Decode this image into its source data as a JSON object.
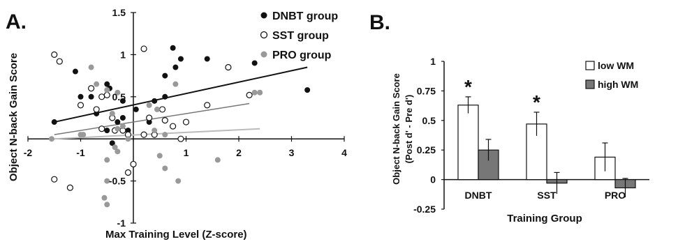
{
  "chart_data": [
    {
      "panel_label": "A.",
      "type": "scatter",
      "xlabel": "Max Training Level (Z-score)",
      "ylabel": "Object N-back Gain Score",
      "xlim": [
        -2,
        4
      ],
      "ylim": [
        -1,
        1.5
      ],
      "x_ticks": [
        "-2",
        "-1",
        "0",
        "1",
        "2",
        "3",
        "4"
      ],
      "y_ticks": [
        "1.5",
        "1",
        "0.5",
        "-0.5",
        "-1"
      ],
      "legend_position": "top-right",
      "series": [
        {
          "name": "DNBT group",
          "marker": "filled-black",
          "color": "#111111",
          "points": [
            [
              -1.5,
              0.2
            ],
            [
              -1.1,
              0.8
            ],
            [
              -1.0,
              0.5
            ],
            [
              -0.8,
              0.5
            ],
            [
              -0.7,
              0.3
            ],
            [
              -0.5,
              0.65
            ],
            [
              -0.5,
              0.1
            ],
            [
              -0.45,
              0.6
            ],
            [
              -0.4,
              -0.05
            ],
            [
              -0.3,
              0.2
            ],
            [
              -0.2,
              0.25
            ],
            [
              -0.1,
              0.1
            ],
            [
              -0.2,
              0.45
            ],
            [
              0.05,
              0.35
            ],
            [
              0.3,
              0.2
            ],
            [
              0.4,
              0.45
            ],
            [
              0.6,
              0.75
            ],
            [
              0.6,
              0.5
            ],
            [
              0.75,
              1.08
            ],
            [
              0.8,
              0.85
            ],
            [
              0.9,
              0.95
            ],
            [
              1.4,
              0.95
            ],
            [
              2.3,
              0.9
            ],
            [
              3.3,
              0.58
            ]
          ],
          "trend": {
            "x": [
              -1.5,
              3.3
            ],
            "y": [
              0.2,
              0.85
            ]
          }
        },
        {
          "name": "SST group",
          "marker": "open-circle",
          "color": "#ffffff",
          "points": [
            [
              -1.5,
              1.0
            ],
            [
              -1.4,
              0.92
            ],
            [
              -1.5,
              -0.48
            ],
            [
              -1.2,
              -0.58
            ],
            [
              -1.0,
              0.4
            ],
            [
              -0.8,
              0.6
            ],
            [
              -0.7,
              0.35
            ],
            [
              -0.6,
              0.5
            ],
            [
              -0.6,
              0.12
            ],
            [
              -0.4,
              0.25
            ],
            [
              -0.35,
              0.1
            ],
            [
              -0.2,
              0.1
            ],
            [
              -0.1,
              0.05
            ],
            [
              0.0,
              -0.3
            ],
            [
              -0.1,
              -0.4
            ],
            [
              0.2,
              0.05
            ],
            [
              0.3,
              0.25
            ],
            [
              0.4,
              0.05
            ],
            [
              0.55,
              0.35
            ],
            [
              0.6,
              0.22
            ],
            [
              0.75,
              0.15
            ],
            [
              1.0,
              0.2
            ],
            [
              1.4,
              0.4
            ],
            [
              1.8,
              0.85
            ],
            [
              2.2,
              0.52
            ],
            [
              0.2,
              1.07
            ],
            [
              -0.5,
              0.52
            ],
            [
              0.9,
              0.0
            ]
          ],
          "trend": {
            "x": [
              -1.5,
              2.2
            ],
            "y": [
              0.05,
              0.42
            ]
          }
        },
        {
          "name": "PRO group",
          "marker": "filled-gray",
          "color": "#999999",
          "points": [
            [
              -1.55,
              0.0
            ],
            [
              -0.8,
              0.85
            ],
            [
              -0.7,
              0.65
            ],
            [
              -0.5,
              0.58
            ],
            [
              -0.4,
              0.3
            ],
            [
              -0.3,
              0.55
            ],
            [
              -0.3,
              0.12
            ],
            [
              -0.2,
              0.15
            ],
            [
              -0.1,
              0.0
            ],
            [
              -0.5,
              -0.25
            ],
            [
              -0.5,
              -0.5
            ],
            [
              -0.55,
              -0.7
            ],
            [
              -0.5,
              -0.78
            ],
            [
              -0.35,
              -0.1
            ],
            [
              -0.3,
              -0.15
            ],
            [
              0.3,
              0.4
            ],
            [
              0.4,
              0.1
            ],
            [
              0.45,
              0.35
            ],
            [
              0.6,
              0.05
            ],
            [
              0.5,
              -0.2
            ],
            [
              0.6,
              -0.35
            ],
            [
              0.85,
              -0.5
            ],
            [
              0.8,
              0.65
            ],
            [
              1.6,
              -0.25
            ],
            [
              2.3,
              0.55
            ],
            [
              2.4,
              0.55
            ],
            [
              -1.0,
              0.05
            ],
            [
              -0.95,
              0.05
            ]
          ],
          "trend": {
            "x": [
              -1.5,
              2.4
            ],
            "y": [
              0.0,
              0.12
            ]
          }
        }
      ]
    },
    {
      "panel_label": "B.",
      "type": "bar",
      "xlabel": "Training Group",
      "ylabel": "Object N-back Gain Score",
      "ylabel2": "(Post d' - Pre d')",
      "categories": [
        "DNBT",
        "SST",
        "PRO"
      ],
      "ylim": [
        -0.25,
        1
      ],
      "y_ticks": [
        "1",
        "0.75",
        "0.5",
        "0.25",
        "0",
        "-0.25"
      ],
      "legend_position": "top-right",
      "series": [
        {
          "name": "low WM",
          "color": "#ffffff",
          "values": [
            0.63,
            0.47,
            0.19
          ],
          "errors": [
            0.07,
            0.1,
            0.12
          ]
        },
        {
          "name": "high WM",
          "color": "#777777",
          "values": [
            0.25,
            -0.03,
            -0.07
          ],
          "errors": [
            0.09,
            0.09,
            0.08
          ]
        }
      ],
      "annotations": [
        {
          "text": "*",
          "category": "DNBT"
        },
        {
          "text": "*",
          "category": "SST"
        }
      ]
    }
  ]
}
